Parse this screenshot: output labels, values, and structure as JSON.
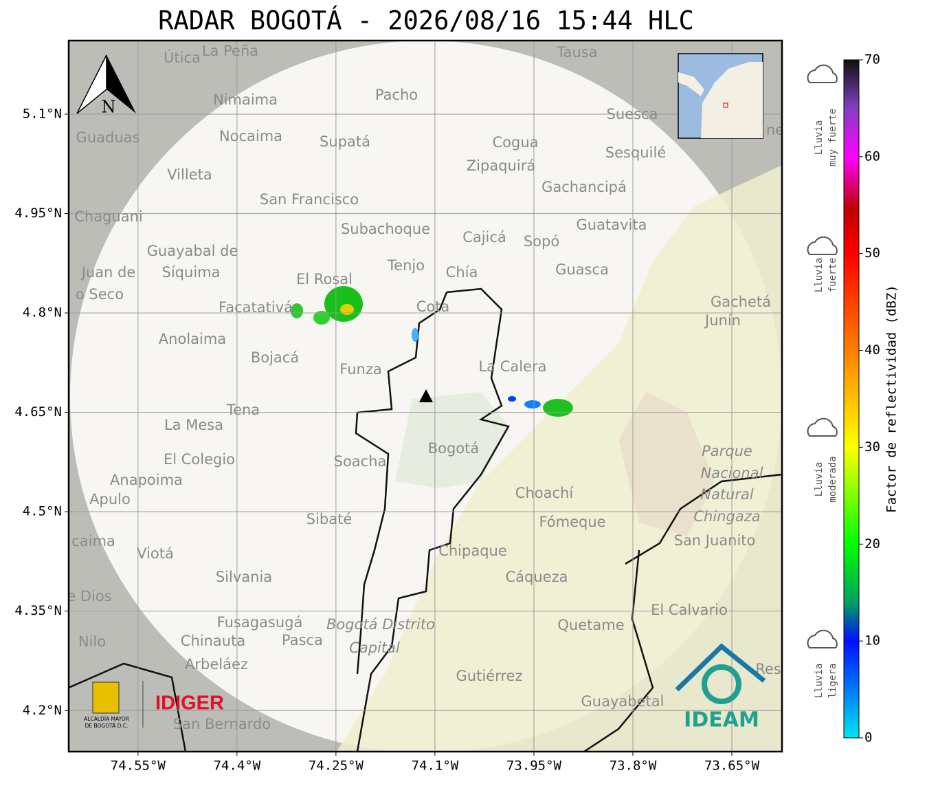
{
  "title": "RADAR BOGOTÁ - 2026/08/16 15:44 HLC",
  "map": {
    "lon_lim": [
      -74.655,
      -73.574
    ],
    "lat_lim": [
      4.138,
      5.211
    ],
    "lat_ticks": [
      {
        "value": 5.1,
        "label": "5.1°N"
      },
      {
        "value": 4.95,
        "label": "4.95°N"
      },
      {
        "value": 4.8,
        "label": "4.8°N"
      },
      {
        "value": 4.65,
        "label": "4.65°N"
      },
      {
        "value": 4.5,
        "label": "4.5°N"
      },
      {
        "value": 4.35,
        "label": "4.35°N"
      },
      {
        "value": 4.2,
        "label": "4.2°N"
      }
    ],
    "lon_ticks": [
      {
        "value": -74.55,
        "label": "74.55°W"
      },
      {
        "value": -74.4,
        "label": "74.4°W"
      },
      {
        "value": -74.25,
        "label": "74.25°W"
      },
      {
        "value": -74.1,
        "label": "74.1°W"
      },
      {
        "value": -73.95,
        "label": "73.95°W"
      },
      {
        "value": -73.8,
        "label": "73.8°W"
      },
      {
        "value": -73.65,
        "label": "73.65°W"
      }
    ],
    "north": "N",
    "places": [
      "Útica",
      "La Peña",
      "Tausa",
      "Nimaima",
      "Pacho",
      "Guaduas",
      "Nocaima",
      "Supatá",
      "Cogua",
      "Suesca",
      "Sesquilé",
      "Zipaquirá",
      "Villeta",
      "Gachancipá",
      "San Francisco",
      "Chaguani",
      "Guatavita",
      "Subachoque",
      "Cajicá",
      "Sopó",
      "Guayabal de",
      "Síquima",
      "Juan de",
      "Tenjo",
      "Chía",
      "Guasca",
      "El Rosal",
      "o Seco",
      "Facatativá",
      "Cota",
      "Gachetá",
      "Junín",
      "Anolaima",
      "Bojacá",
      "Funza",
      "La Calera",
      "Tena",
      "La Mesa",
      "Parque",
      "Bogotá",
      "Soacha",
      "El Colegio",
      "Nacional",
      "Anapoima",
      "Apulo",
      "Choachí",
      "Natural",
      "Chingaza",
      "Sibaté",
      "Fómeque",
      "San Juanito",
      "caima",
      "Viotá",
      "Chipaque",
      "Silvania",
      "Cáqueza",
      "e Dios",
      "El Calvario",
      "Fusagasugá",
      "Bogotá Distrito",
      "Quetame",
      "Nilo",
      "Chinauta",
      "Pasca",
      "Capital",
      "Arbeláez",
      "Gutiérrez",
      "Guayabetal",
      "San Bernardo",
      "Res",
      "ne"
    ]
  },
  "colorbar": {
    "label": "Factor de reflectividad (dBZ)",
    "lim": [
      0,
      70
    ],
    "ticks": [
      0,
      10,
      20,
      30,
      40,
      50,
      60,
      70
    ]
  },
  "rain_legend": [
    [
      "Lluvia",
      "muy fuerte"
    ],
    [
      "Lluvia",
      "fuerte"
    ],
    [
      "Lluvia",
      "moderada"
    ],
    [
      "Lluvia",
      "ligera"
    ]
  ],
  "logos": {
    "alcaldia_1": "ALCALDÍA MAYOR",
    "alcaldia_2": "DE BOGOTÁ D.C.",
    "idiger": "IDIGER",
    "ideam": "IDEAM"
  }
}
